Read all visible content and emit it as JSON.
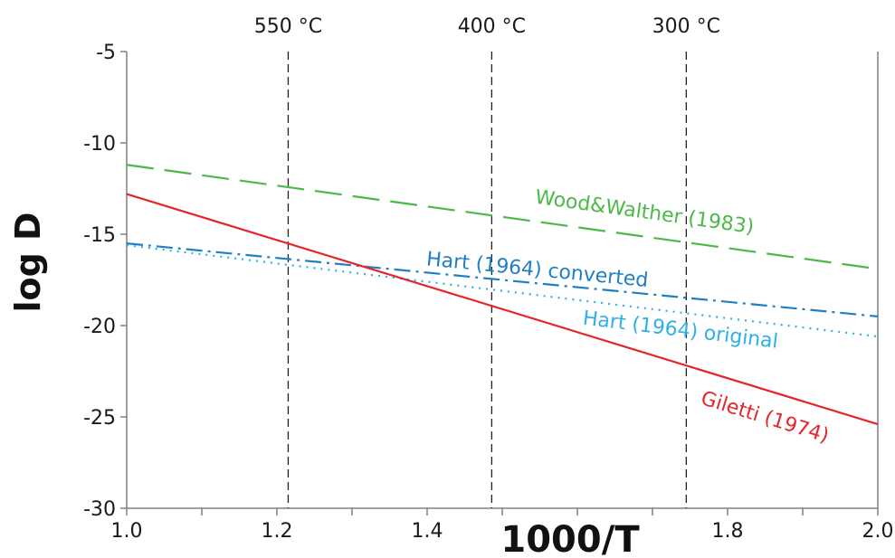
{
  "chart_data": {
    "type": "line",
    "xlabel": "1000/T",
    "ylabel": "log D",
    "xlim": [
      1.0,
      2.0
    ],
    "ylim": [
      -30,
      -5
    ],
    "x_ticks": [
      1.0,
      1.2,
      1.4,
      1.6,
      1.8,
      2.0
    ],
    "x_tick_labels": [
      "1.0",
      "1.2",
      "1.4",
      "",
      "1.8",
      "2.0"
    ],
    "y_ticks": [
      -30,
      -25,
      -20,
      -15,
      -10,
      -5
    ],
    "y_tick_labels": [
      "-30",
      "-25",
      "-20",
      "-15",
      "-10",
      "-5"
    ],
    "grid": false,
    "temperature_markers": [
      {
        "label": "550 °C",
        "x": 1.215
      },
      {
        "label": "400 °C",
        "x": 1.486
      },
      {
        "label": "300 °C",
        "x": 1.745
      }
    ],
    "series": [
      {
        "name": "Wood&Walther (1983)",
        "color": "#4db848",
        "style": "dashed",
        "x": [
          1.0,
          2.0
        ],
        "y": [
          -11.2,
          -16.9
        ]
      },
      {
        "name": "Hart (1964) converted",
        "color": "#1f7fc1",
        "style": "dashdot",
        "x": [
          1.0,
          2.0
        ],
        "y": [
          -15.5,
          -19.5
        ]
      },
      {
        "name": "Hart (1964) original",
        "color": "#2fb0e6",
        "style": "dotted",
        "x": [
          1.0,
          2.0
        ],
        "y": [
          -15.6,
          -20.6
        ]
      },
      {
        "name": "Giletti (1974)",
        "color": "#e5242b",
        "style": "solid",
        "x": [
          1.0,
          2.0
        ],
        "y": [
          -12.8,
          -25.4
        ]
      }
    ]
  }
}
